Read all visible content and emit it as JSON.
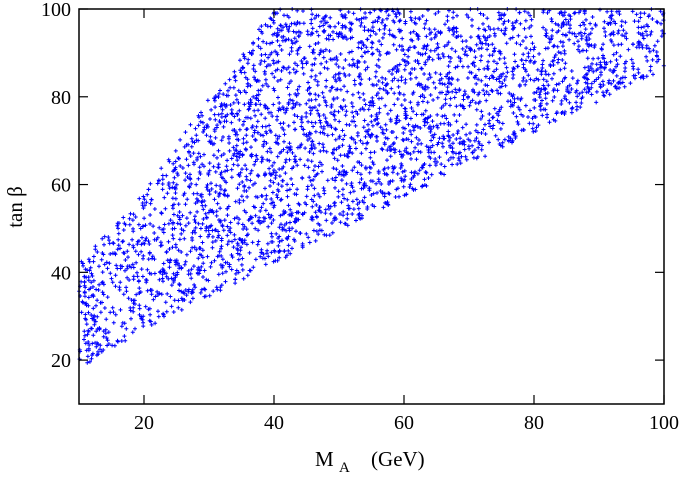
{
  "chart_data": {
    "type": "scatter",
    "title": "",
    "xlabel": "M",
    "xlabel_subscript": "A",
    "xlabel_unit": "(GeV)",
    "ylabel": "tan β",
    "xlim": [
      10,
      100
    ],
    "ylim": [
      10,
      100
    ],
    "x_ticks": [
      20,
      40,
      60,
      80,
      100
    ],
    "y_ticks": [
      20,
      40,
      60,
      80,
      100
    ],
    "grid": false,
    "legend": "none",
    "series": [
      {
        "color": "#0000ff",
        "marker": "plus",
        "region": {
          "description_points": "densely filled allowed region",
          "lower_boundary": [
            [
              10,
              18
            ],
            [
              20,
              27
            ],
            [
              40,
              42
            ],
            [
              60,
              57
            ],
            [
              80,
              72
            ],
            [
              100,
              86
            ]
          ],
          "upper_boundary": [
            [
              10,
              42
            ],
            [
              20,
              58
            ],
            [
              30,
              80
            ],
            [
              40,
              100
            ],
            [
              100,
              100
            ]
          ]
        },
        "point_count": 5200
      }
    ]
  }
}
